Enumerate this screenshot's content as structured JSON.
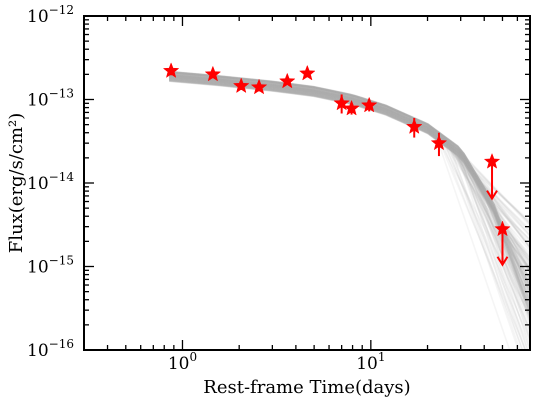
{
  "chart_data": {
    "type": "scatter",
    "xlabel": "Rest-frame Time(days)",
    "ylabel": "Flux(erg/s/cm²)",
    "xscale": "log",
    "yscale": "log",
    "xlim": [
      0.3,
      70
    ],
    "ylim": [
      1e-16,
      1e-12
    ],
    "grid": false,
    "x_ticks": [
      {
        "value": 1,
        "base": "10",
        "exp": "0"
      },
      {
        "value": 10,
        "base": "10",
        "exp": "1"
      }
    ],
    "y_ticks": [
      {
        "value": 1e-16,
        "base": "10",
        "exp": "−16"
      },
      {
        "value": 1e-15,
        "base": "10",
        "exp": "−15"
      },
      {
        "value": 1e-14,
        "base": "10",
        "exp": "−14"
      },
      {
        "value": 1e-13,
        "base": "10",
        "exp": "−13"
      },
      {
        "value": 1e-12,
        "base": "10",
        "exp": "−12"
      }
    ],
    "model_band": {
      "color": "#b0b0b0",
      "description_points": [
        [
          0.85,
          1.9e-13
        ],
        [
          1.5,
          1.7e-13
        ],
        [
          3,
          1.45e-13
        ],
        [
          5,
          1.25e-13
        ],
        [
          8,
          1e-13
        ],
        [
          12,
          7.5e-14
        ],
        [
          20,
          4.5e-14
        ],
        [
          30,
          2.3e-14
        ],
        [
          45,
          5e-15
        ],
        [
          70,
          3e-16
        ]
      ]
    },
    "series": [
      {
        "color": "#ff0000",
        "marker": "star",
        "points": [
          {
            "x": 0.87,
            "y": 2.2e-13,
            "yerr_low": 1.95e-13,
            "yerr_high": 2.45e-13
          },
          {
            "x": 1.45,
            "y": 2e-13,
            "yerr_low": 1.8e-13,
            "yerr_high": 2.2e-13
          },
          {
            "x": 2.05,
            "y": 1.45e-13,
            "yerr_low": 1.3e-13,
            "yerr_high": 1.6e-13
          },
          {
            "x": 2.55,
            "y": 1.4e-13,
            "yerr_low": 1.25e-13,
            "yerr_high": 1.55e-13
          },
          {
            "x": 3.6,
            "y": 1.65e-13,
            "yerr_low": 1.5e-13,
            "yerr_high": 1.8e-13
          },
          {
            "x": 4.6,
            "y": 2.05e-13,
            "yerr_low": 1.85e-13,
            "yerr_high": 2.25e-13
          },
          {
            "x": 7.0,
            "y": 9e-14,
            "yerr_low": 6.8e-14,
            "yerr_high": 1.15e-13
          },
          {
            "x": 7.9,
            "y": 7.8e-14,
            "yerr_low": 6.6e-14,
            "yerr_high": 9e-14
          },
          {
            "x": 9.8,
            "y": 8.5e-14,
            "yerr_low": 7.2e-14,
            "yerr_high": 1e-13
          },
          {
            "x": 17.0,
            "y": 4.7e-14,
            "yerr_low": 3.5e-14,
            "yerr_high": 6e-14
          },
          {
            "x": 23.0,
            "y": 3e-14,
            "yerr_low": 2.1e-14,
            "yerr_high": 4e-14
          },
          {
            "x": 44.0,
            "y": 1.8e-14,
            "upper_limit": true,
            "arrow_to": 6.5e-15
          },
          {
            "x": 50.0,
            "y": 2.8e-15,
            "upper_limit": true,
            "arrow_to": 1.05e-15
          }
        ]
      }
    ]
  }
}
